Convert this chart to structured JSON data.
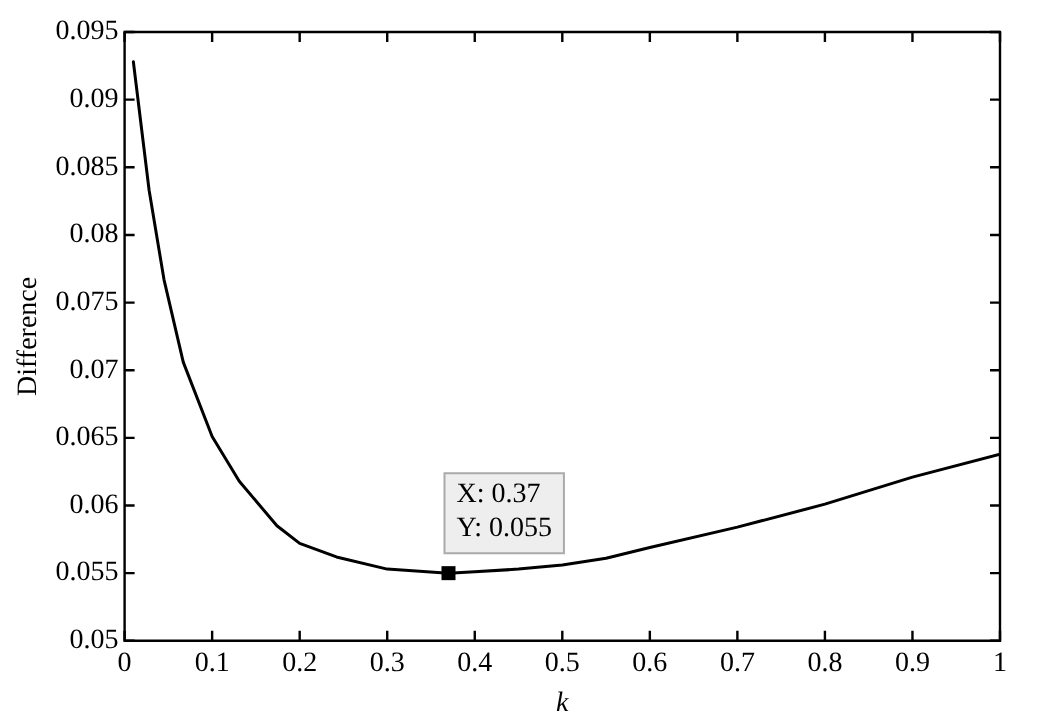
{
  "chart_data": {
    "type": "line",
    "xlabel": "k",
    "ylabel": "Difference",
    "x": [
      0.01,
      0.028,
      0.045,
      0.067,
      0.1,
      0.131,
      0.174,
      0.2,
      0.242,
      0.3,
      0.37,
      0.4,
      0.45,
      0.5,
      0.55,
      0.6,
      0.7,
      0.8,
      0.9,
      1.0
    ],
    "series": [
      {
        "color": "#000000",
        "values": [
          0.0928,
          0.0833,
          0.0767,
          0.0706,
          0.0651,
          0.0618,
          0.0585,
          0.0572,
          0.0562,
          0.0553,
          0.055,
          0.0551,
          0.0553,
          0.0556,
          0.0561,
          0.0569,
          0.0584,
          0.0601,
          0.0621,
          0.0638
        ]
      }
    ],
    "xlim": [
      0,
      1
    ],
    "xticks": [
      0,
      0.1,
      0.2,
      0.3,
      0.4,
      0.5,
      0.6,
      0.7,
      0.8,
      0.9,
      1
    ],
    "ylim": [
      0.05,
      0.095
    ],
    "yticks": [
      0.05,
      0.055,
      0.06,
      0.065,
      0.07,
      0.075,
      0.08,
      0.085,
      0.09,
      0.095
    ],
    "grid": false,
    "legend": false,
    "marker": "none",
    "line_style": "solid",
    "annotations": [
      {
        "text": "X: 0.37\nY: 0.055",
        "x": 0.37,
        "y": 0.055
      }
    ]
  }
}
